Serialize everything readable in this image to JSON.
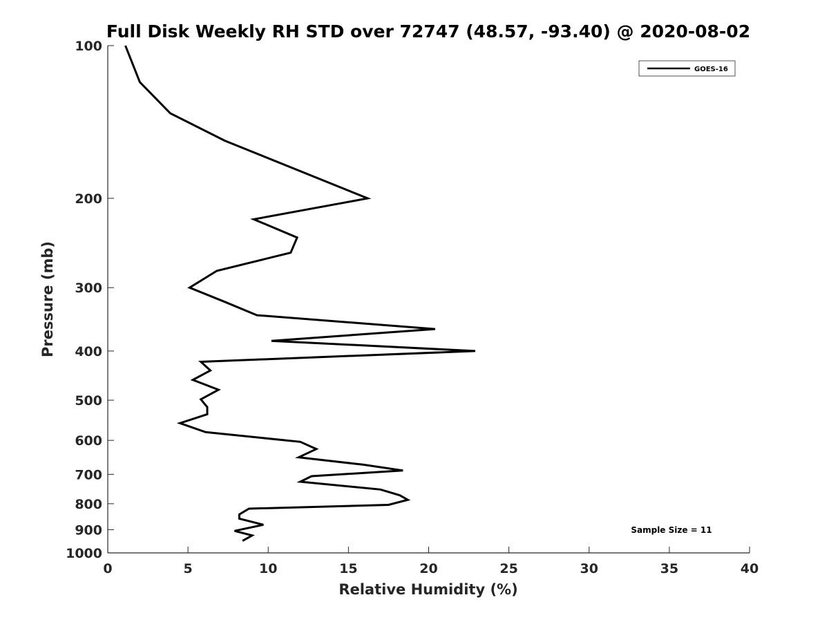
{
  "chart_data": {
    "type": "line",
    "title": "Full Disk Weekly RH STD over 72747 (48.57, -93.40) @ 2020-08-02",
    "xlabel": "Relative Humidity (%)",
    "ylabel": "Pressure (mb)",
    "xlim": [
      0,
      40
    ],
    "ylim": [
      100,
      1000
    ],
    "y_scale": "log",
    "y_reversed": true,
    "x_ticks": [
      0,
      5,
      10,
      15,
      20,
      25,
      30,
      35,
      40
    ],
    "y_ticks": [
      100,
      200,
      300,
      400,
      500,
      600,
      700,
      800,
      900,
      1000
    ],
    "grid": false,
    "legend_position": "top-right",
    "series": [
      {
        "name": "GOES-16",
        "color": "#000000",
        "points": [
          [
            1.1,
            100
          ],
          [
            2.0,
            118
          ],
          [
            3.9,
            136
          ],
          [
            7.3,
            154
          ],
          [
            16.2,
            200
          ],
          [
            9.1,
            220
          ],
          [
            11.8,
            239
          ],
          [
            11.4,
            256
          ],
          [
            6.8,
            278
          ],
          [
            5.1,
            300
          ],
          [
            7.3,
            320
          ],
          [
            9.3,
            340
          ],
          [
            20.4,
            362
          ],
          [
            10.2,
            382
          ],
          [
            22.9,
            400
          ],
          [
            5.8,
            420
          ],
          [
            6.4,
            437
          ],
          [
            5.3,
            456
          ],
          [
            6.9,
            477
          ],
          [
            5.8,
            498
          ],
          [
            6.2,
            516
          ],
          [
            6.2,
            533
          ],
          [
            4.5,
            555
          ],
          [
            6.1,
            578
          ],
          [
            12.0,
            604
          ],
          [
            13.0,
            624
          ],
          [
            11.9,
            648
          ],
          [
            15.9,
            670
          ],
          [
            18.4,
            688
          ],
          [
            12.7,
            706
          ],
          [
            12.0,
            724
          ],
          [
            17.0,
            750
          ],
          [
            18.2,
            770
          ],
          [
            18.7,
            786
          ],
          [
            17.5,
            804
          ],
          [
            8.8,
            818
          ],
          [
            8.2,
            840
          ],
          [
            8.2,
            856
          ],
          [
            9.7,
            880
          ],
          [
            7.9,
            905
          ],
          [
            9.0,
            924
          ],
          [
            8.4,
            947
          ]
        ]
      }
    ],
    "annotations": [
      "Sample Size = 11"
    ]
  }
}
